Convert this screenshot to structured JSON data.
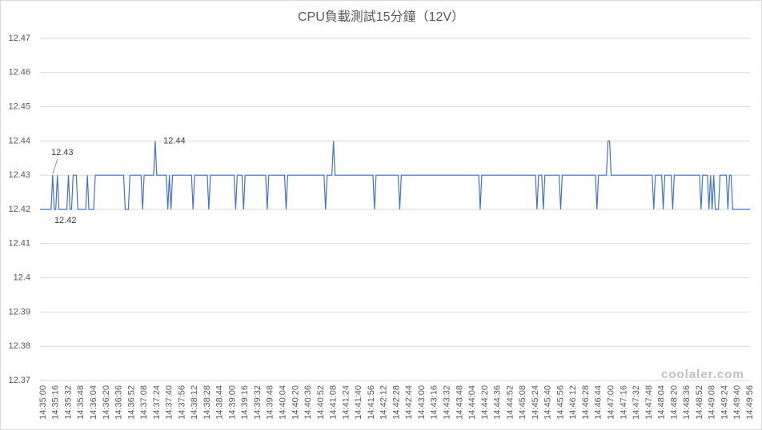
{
  "chart_data": {
    "type": "line",
    "title": "CPU負載測試15分鐘（12V）",
    "watermark": "coolaler.com",
    "categories": [
      "14:35:00",
      null,
      null,
      null,
      null,
      null,
      null,
      null,
      "14:35:16",
      null,
      null,
      null,
      null,
      null,
      null,
      null,
      "14:35:32",
      null,
      null,
      null,
      null,
      null,
      null,
      null,
      "14:35:48",
      null,
      null,
      null,
      null,
      null,
      null,
      null,
      "14:36:04",
      null,
      null,
      null,
      null,
      null,
      null,
      null,
      "14:36:20",
      null,
      null,
      null,
      null,
      null,
      null,
      null,
      "14:36:36",
      null,
      null,
      null,
      null,
      null,
      null,
      null,
      "14:36:52",
      null,
      null,
      null,
      null,
      null,
      null,
      null,
      "14:37:08",
      null,
      null,
      null,
      null,
      null,
      null,
      null,
      "14:37:24",
      null,
      null,
      null,
      null,
      null,
      null,
      null,
      "14:37:40",
      null,
      null,
      null,
      null,
      null,
      null,
      null,
      "14:37:56",
      null,
      null,
      null,
      null,
      null,
      null,
      null,
      "14:38:12",
      null,
      null,
      null,
      null,
      null,
      null,
      null,
      "14:38:28",
      null,
      null,
      null,
      null,
      null,
      null,
      null,
      "14:38:44",
      null,
      null,
      null,
      null,
      null,
      null,
      null,
      "14:39:00",
      null,
      null,
      null,
      null,
      null,
      null,
      null,
      "14:39:16",
      null,
      null,
      null,
      null,
      null,
      null,
      null,
      "14:39:32",
      null,
      null,
      null,
      null,
      null,
      null,
      null,
      "14:39:48",
      null,
      null,
      null,
      null,
      null,
      null,
      null,
      "14:40:04",
      null,
      null,
      null,
      null,
      null,
      null,
      null,
      "14:40:20",
      null,
      null,
      null,
      null,
      null,
      null,
      null,
      "14:40:36",
      null,
      null,
      null,
      null,
      null,
      null,
      null,
      "14:40:52",
      null,
      null,
      null,
      null,
      null,
      null,
      null,
      "14:41:08",
      null,
      null,
      null,
      null,
      null,
      null,
      null,
      "14:41:24",
      null,
      null,
      null,
      null,
      null,
      null,
      null,
      "14:41:40",
      null,
      null,
      null,
      null,
      null,
      null,
      null,
      "14:41:56",
      null,
      null,
      null,
      null,
      null,
      null,
      null,
      "14:42:12",
      null,
      null,
      null,
      null,
      null,
      null,
      null,
      "14:42:28",
      null,
      null,
      null,
      null,
      null,
      null,
      null,
      "14:42:44",
      null,
      null,
      null,
      null,
      null,
      null,
      null,
      "14:43:00",
      null,
      null,
      null,
      null,
      null,
      null,
      null,
      "14:43:16",
      null,
      null,
      null,
      null,
      null,
      null,
      null,
      "14:43:32",
      null,
      null,
      null,
      null,
      null,
      null,
      null,
      "14:43:48",
      null,
      null,
      null,
      null,
      null,
      null,
      null,
      "14:44:04",
      null,
      null,
      null,
      null,
      null,
      null,
      null,
      "14:44:20",
      null,
      null,
      null,
      null,
      null,
      null,
      null,
      "14:44:36",
      null,
      null,
      null,
      null,
      null,
      null,
      null,
      "14:44:52",
      null,
      null,
      null,
      null,
      null,
      null,
      null,
      "14:45:08",
      null,
      null,
      null,
      null,
      null,
      null,
      null,
      "14:45:24",
      null,
      null,
      null,
      null,
      null,
      null,
      null,
      "14:45:40",
      null,
      null,
      null,
      null,
      null,
      null,
      null,
      "14:45:56",
      null,
      null,
      null,
      null,
      null,
      null,
      null,
      "14:46:12",
      null,
      null,
      null,
      null,
      null,
      null,
      null,
      "14:46:28",
      null,
      null,
      null,
      null,
      null,
      null,
      null,
      "14:46:44",
      null,
      null,
      null,
      null,
      null,
      null,
      null,
      "14:47:00",
      null,
      null,
      null,
      null,
      null,
      null,
      null,
      "14:47:16",
      null,
      null,
      null,
      null,
      null,
      null,
      null,
      "14:47:32",
      null,
      null,
      null,
      null,
      null,
      null,
      null,
      "14:47:48",
      null,
      null,
      null,
      null,
      null,
      null,
      null,
      "14:48:04",
      null,
      null,
      null,
      null,
      null,
      null,
      null,
      "14:48:20",
      null,
      null,
      null,
      null,
      null,
      null,
      null,
      "14:48:36",
      null,
      null,
      null,
      null,
      null,
      null,
      null,
      "14:48:52",
      null,
      null,
      null,
      null,
      null,
      null,
      null,
      "14:49:08",
      null,
      null,
      null,
      null,
      null,
      null,
      null,
      "14:49:24",
      null,
      null,
      null,
      null,
      null,
      null,
      null,
      "14:49:40",
      null,
      null,
      null,
      null,
      null,
      null,
      null,
      "14:49:56",
      null,
      null
    ],
    "values": [
      12.42,
      12.42,
      12.42,
      12.42,
      12.42,
      12.42,
      12.42,
      12.42,
      12.43,
      12.42,
      12.42,
      12.43,
      12.42,
      12.42,
      12.42,
      12.42,
      12.42,
      12.42,
      12.43,
      12.42,
      12.42,
      12.43,
      12.43,
      12.43,
      12.42,
      12.42,
      12.42,
      12.42,
      12.42,
      12.42,
      12.43,
      12.42,
      12.42,
      12.42,
      12.42,
      12.43,
      12.43,
      12.43,
      12.43,
      12.43,
      12.43,
      12.43,
      12.43,
      12.43,
      12.43,
      12.43,
      12.43,
      12.43,
      12.43,
      12.43,
      12.43,
      12.43,
      12.43,
      12.43,
      12.42,
      12.42,
      12.42,
      12.43,
      12.43,
      12.43,
      12.43,
      12.43,
      12.43,
      12.43,
      12.43,
      12.42,
      12.43,
      12.43,
      12.43,
      12.43,
      12.43,
      12.43,
      12.43,
      12.44,
      12.43,
      12.43,
      12.43,
      12.43,
      12.43,
      12.43,
      12.43,
      12.42,
      12.43,
      12.42,
      12.43,
      12.43,
      12.43,
      12.43,
      12.43,
      12.43,
      12.43,
      12.43,
      12.43,
      12.43,
      12.43,
      12.43,
      12.43,
      12.42,
      12.43,
      12.43,
      12.43,
      12.43,
      12.43,
      12.43,
      12.43,
      12.43,
      12.43,
      12.42,
      12.43,
      12.43,
      12.43,
      12.43,
      12.43,
      12.43,
      12.43,
      12.43,
      12.43,
      12.43,
      12.43,
      12.43,
      12.43,
      12.43,
      12.43,
      12.43,
      12.42,
      12.43,
      12.43,
      12.43,
      12.43,
      12.42,
      12.43,
      12.43,
      12.43,
      12.43,
      12.43,
      12.43,
      12.43,
      12.43,
      12.43,
      12.43,
      12.43,
      12.43,
      12.43,
      12.43,
      12.42,
      12.43,
      12.43,
      12.43,
      12.43,
      12.43,
      12.43,
      12.43,
      12.43,
      12.43,
      12.43,
      12.43,
      12.42,
      12.43,
      12.43,
      12.43,
      12.43,
      12.43,
      12.43,
      12.43,
      12.43,
      12.43,
      12.43,
      12.43,
      12.43,
      12.43,
      12.43,
      12.43,
      12.43,
      12.43,
      12.43,
      12.43,
      12.43,
      12.43,
      12.43,
      12.43,
      12.43,
      12.42,
      12.43,
      12.43,
      12.43,
      12.43,
      12.44,
      12.43,
      12.43,
      12.43,
      12.43,
      12.43,
      12.43,
      12.43,
      12.43,
      12.43,
      12.43,
      12.43,
      12.43,
      12.43,
      12.43,
      12.43,
      12.43,
      12.43,
      12.43,
      12.43,
      12.43,
      12.43,
      12.43,
      12.43,
      12.43,
      12.43,
      12.42,
      12.43,
      12.43,
      12.43,
      12.43,
      12.43,
      12.43,
      12.43,
      12.43,
      12.43,
      12.43,
      12.43,
      12.43,
      12.43,
      12.43,
      12.43,
      12.42,
      12.43,
      12.43,
      12.43,
      12.43,
      12.43,
      12.43,
      12.43,
      12.43,
      12.43,
      12.43,
      12.43,
      12.43,
      12.43,
      12.43,
      12.43,
      12.43,
      12.43,
      12.43,
      12.43,
      12.43,
      12.43,
      12.43,
      12.43,
      12.43,
      12.43,
      12.43,
      12.43,
      12.43,
      12.43,
      12.43,
      12.43,
      12.43,
      12.43,
      12.43,
      12.43,
      12.43,
      12.43,
      12.43,
      12.43,
      12.43,
      12.43,
      12.43,
      12.43,
      12.43,
      12.43,
      12.43,
      12.43,
      12.43,
      12.43,
      12.43,
      12.42,
      12.43,
      12.43,
      12.43,
      12.43,
      12.43,
      12.43,
      12.43,
      12.43,
      12.43,
      12.43,
      12.43,
      12.43,
      12.43,
      12.43,
      12.43,
      12.43,
      12.43,
      12.43,
      12.43,
      12.43,
      12.43,
      12.43,
      12.43,
      12.43,
      12.43,
      12.43,
      12.43,
      12.43,
      12.43,
      12.43,
      12.43,
      12.43,
      12.43,
      12.43,
      12.43,
      12.42,
      12.43,
      12.43,
      12.43,
      12.42,
      12.43,
      12.43,
      12.43,
      12.43,
      12.43,
      12.43,
      12.43,
      12.43,
      12.43,
      12.43,
      12.42,
      12.43,
      12.43,
      12.43,
      12.43,
      12.43,
      12.43,
      12.43,
      12.43,
      12.43,
      12.43,
      12.43,
      12.43,
      12.43,
      12.43,
      12.43,
      12.43,
      12.43,
      12.43,
      12.43,
      12.43,
      12.43,
      12.43,
      12.42,
      12.43,
      12.43,
      12.43,
      12.43,
      12.43,
      12.43,
      12.44,
      12.44,
      12.43,
      12.43,
      12.43,
      12.43,
      12.43,
      12.43,
      12.43,
      12.43,
      12.43,
      12.43,
      12.43,
      12.43,
      12.43,
      12.43,
      12.43,
      12.43,
      12.43,
      12.43,
      12.43,
      12.43,
      12.43,
      12.43,
      12.43,
      12.43,
      12.43,
      12.43,
      12.43,
      12.42,
      12.43,
      12.43,
      12.43,
      12.43,
      12.43,
      12.42,
      12.43,
      12.43,
      12.43,
      12.43,
      12.43,
      12.42,
      12.43,
      12.43,
      12.43,
      12.43,
      12.43,
      12.43,
      12.43,
      12.43,
      12.43,
      12.43,
      12.43,
      12.43,
      12.43,
      12.43,
      12.43,
      12.43,
      12.43,
      12.42,
      12.43,
      12.43,
      12.43,
      12.43,
      12.42,
      12.43,
      12.42,
      12.43,
      12.42,
      12.42,
      12.42,
      12.43,
      12.43,
      12.43,
      12.43,
      12.43,
      12.42,
      12.43,
      12.43,
      12.42,
      12.42,
      12.42,
      12.42,
      12.42,
      12.42,
      12.42,
      12.42,
      12.42,
      12.42,
      12.42,
      12.42
    ],
    "labeled_points": [
      8,
      10,
      73
    ],
    "color": "#4472c4",
    "ylim": [
      12.37,
      12.47
    ],
    "yticks": [
      12.37,
      12.38,
      12.39,
      12.4,
      12.41,
      12.42,
      12.43,
      12.44,
      12.45,
      12.46,
      12.47
    ],
    "grid": true
  }
}
